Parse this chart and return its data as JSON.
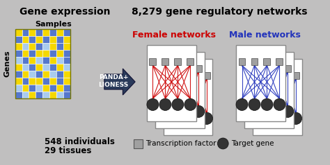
{
  "bg_color": "#c0bfbf",
  "title_left": "Gene expression",
  "title_right": "8,279 gene regulatory networks",
  "female_label": "Female networks",
  "male_label": "Male networks",
  "bottom_left1": "548 individuals",
  "bottom_left2": "29 tissues",
  "samples_label": "Samples",
  "genes_label": "Genes",
  "arrow_label": "PANDA+\nLIONESS",
  "legend_tf": "Transcription factor",
  "legend_tg": "Target gene",
  "female_color": "#cc0000",
  "male_color": "#2233bb",
  "tf_color": "#a0a0a0",
  "tg_color": "#333333",
  "panel_bg": "#ffffff",
  "panel_edge": "#888888",
  "arrow_color": "#2a3a5a",
  "heatmap_colors": [
    [
      "#f5d800",
      "#5577cc",
      "#f5d800",
      "#5577cc",
      "#f5d800",
      "#5577cc",
      "#f5d800",
      "#5577cc"
    ],
    [
      "#5577cc",
      "#f5d800",
      "#5577cc",
      "#f5d800",
      "#5577cc",
      "#f5d800",
      "#5577cc",
      "#f5d800"
    ],
    [
      "#f5d800",
      "#aaccee",
      "#f5d800",
      "#5577cc",
      "#aaccee",
      "#f5d800",
      "#5577cc",
      "#f5d800"
    ],
    [
      "#5577cc",
      "#f5d800",
      "#5577cc",
      "#f5d800",
      "#f5d800",
      "#5577cc",
      "#f5d800",
      "#5577cc"
    ],
    [
      "#aaccee",
      "#5577cc",
      "#f5d800",
      "#aaccee",
      "#5577cc",
      "#f5d800",
      "#aaccee",
      "#5577cc"
    ],
    [
      "#f5d800",
      "#aaccee",
      "#5577cc",
      "#f5d800",
      "#aaccee",
      "#5577cc",
      "#f5d800",
      "#aaccee"
    ],
    [
      "#5577cc",
      "#f5d800",
      "#aaccee",
      "#5577cc",
      "#f5d800",
      "#aaccee",
      "#5577cc",
      "#f5d800"
    ],
    [
      "#f5d800",
      "#5577cc",
      "#f5d800",
      "#f5d800",
      "#5577cc",
      "#f5d800",
      "#5577cc",
      "#f5d800"
    ],
    [
      "#aaccee",
      "#f5d800",
      "#5577cc",
      "#aaccee",
      "#f5d800",
      "#5577cc",
      "#f5d800",
      "#5577cc"
    ],
    [
      "#5577cc",
      "#aaccee",
      "#f5d800",
      "#5577cc",
      "#aaccee",
      "#f5d800",
      "#aaccee",
      "#5577cc"
    ]
  ],
  "figw": 4.74,
  "figh": 2.38,
  "dpi": 100
}
